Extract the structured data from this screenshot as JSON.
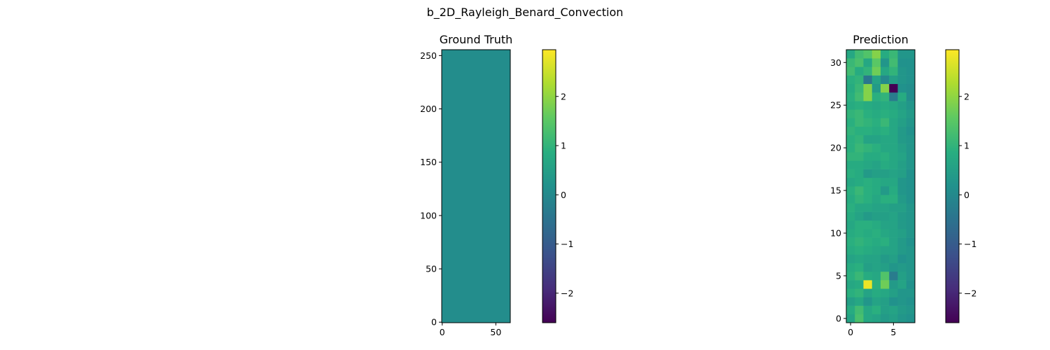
{
  "figure": {
    "suptitle": "b_2D_Rayleigh_Benard_Convection"
  },
  "chart_data": [
    {
      "type": "heatmap",
      "title": "Ground Truth",
      "x_ticks": [
        0,
        50
      ],
      "y_ticks": [
        0,
        50,
        100,
        150,
        200,
        250
      ],
      "xlim": [
        -0.5,
        63.5
      ],
      "ylim": [
        -0.5,
        255.5
      ],
      "constant_value": 0.08,
      "colormap": "viridis",
      "colorbar": {
        "vmin": -2.6,
        "vmax": 2.95,
        "ticks": [
          -2,
          -1,
          0,
          1,
          2
        ]
      }
    },
    {
      "type": "heatmap",
      "title": "Prediction",
      "x_ticks": [
        0,
        5
      ],
      "y_ticks": [
        0,
        5,
        10,
        15,
        20,
        25,
        30
      ],
      "xlim": [
        -0.5,
        7.5
      ],
      "ylim": [
        -0.5,
        31.5
      ],
      "colormap": "viridis",
      "colorbar": {
        "vmin": -2.6,
        "vmax": 2.95,
        "ticks": [
          -2,
          -1,
          0,
          1,
          2
        ]
      },
      "rows_bottom_to_top": [
        [
          0.6,
          1.3,
          0.7,
          0.6,
          0.4,
          0.5,
          0.3,
          0.2
        ],
        [
          0.8,
          1.2,
          0.7,
          0.9,
          0.5,
          0.6,
          0.4,
          0.3
        ],
        [
          0.5,
          0.7,
          0.3,
          0.6,
          0.5,
          0.2,
          0.3,
          0.2
        ],
        [
          0.9,
          1.0,
          0.6,
          0.8,
          0.7,
          0.5,
          0.3,
          0.3
        ],
        [
          0.7,
          0.8,
          2.8,
          0.9,
          1.7,
          0.4,
          0.6,
          0.2
        ],
        [
          0.9,
          1.1,
          0.8,
          0.7,
          1.4,
          -0.3,
          0.5,
          0.3
        ],
        [
          0.8,
          0.9,
          0.5,
          0.6,
          0.5,
          0.3,
          0.4,
          0.3
        ],
        [
          0.6,
          0.7,
          0.6,
          0.6,
          0.4,
          0.5,
          0.2,
          0.3
        ],
        [
          0.8,
          0.9,
          0.8,
          0.7,
          0.6,
          0.6,
          0.4,
          0.3
        ],
        [
          0.9,
          1.0,
          0.9,
          0.8,
          0.9,
          0.6,
          0.4,
          0.2
        ],
        [
          0.8,
          0.9,
          0.8,
          0.9,
          0.7,
          0.6,
          0.5,
          0.3
        ],
        [
          0.7,
          0.9,
          0.9,
          0.8,
          0.6,
          0.6,
          0.4,
          0.3
        ],
        [
          0.8,
          0.6,
          0.4,
          0.5,
          0.5,
          0.6,
          0.4,
          0.3
        ],
        [
          0.9,
          0.7,
          0.7,
          0.6,
          0.6,
          0.5,
          0.5,
          0.3
        ],
        [
          0.8,
          1.0,
          0.9,
          0.7,
          0.9,
          0.9,
          0.4,
          0.2
        ],
        [
          0.9,
          1.1,
          0.9,
          0.8,
          0.4,
          0.8,
          0.3,
          0.2
        ],
        [
          0.7,
          0.8,
          0.9,
          0.8,
          0.7,
          0.7,
          0.3,
          0.2
        ],
        [
          0.9,
          0.8,
          0.4,
          0.5,
          0.5,
          0.6,
          0.5,
          0.2
        ],
        [
          0.8,
          0.8,
          0.7,
          0.6,
          0.8,
          0.7,
          0.5,
          0.3
        ],
        [
          1.0,
          1.0,
          0.8,
          0.8,
          0.9,
          0.7,
          0.6,
          0.3
        ],
        [
          0.9,
          1.1,
          1.0,
          0.9,
          0.7,
          0.7,
          0.5,
          0.3
        ],
        [
          0.9,
          1.0,
          0.6,
          0.6,
          0.7,
          0.7,
          0.4,
          0.3
        ],
        [
          1.0,
          0.9,
          0.9,
          0.8,
          0.9,
          0.7,
          0.4,
          0.2
        ],
        [
          0.9,
          1.1,
          1.0,
          0.9,
          1.1,
          0.7,
          0.5,
          0.3
        ],
        [
          1.0,
          1.1,
          0.9,
          0.8,
          0.9,
          0.8,
          0.6,
          0.4
        ],
        [
          0.8,
          0.9,
          0.8,
          0.7,
          0.8,
          0.7,
          0.5,
          0.3
        ],
        [
          0.9,
          1.2,
          1.9,
          0.9,
          1.0,
          -0.3,
          0.8,
          0.1
        ],
        [
          0.8,
          1.1,
          1.9,
          0.4,
          1.9,
          -2.6,
          0.2,
          0.1
        ],
        [
          0.9,
          1.0,
          -0.4,
          0.6,
          0.0,
          0.5,
          0.3,
          0.2
        ],
        [
          1.2,
          0.8,
          1.0,
          1.7,
          0.7,
          1.0,
          0.3,
          0.2
        ],
        [
          1.1,
          1.3,
          0.7,
          1.5,
          0.3,
          1.2,
          0.2,
          0.2
        ],
        [
          0.7,
          1.2,
          1.4,
          1.9,
          0.8,
          1.1,
          0.3,
          0.3
        ]
      ]
    }
  ]
}
